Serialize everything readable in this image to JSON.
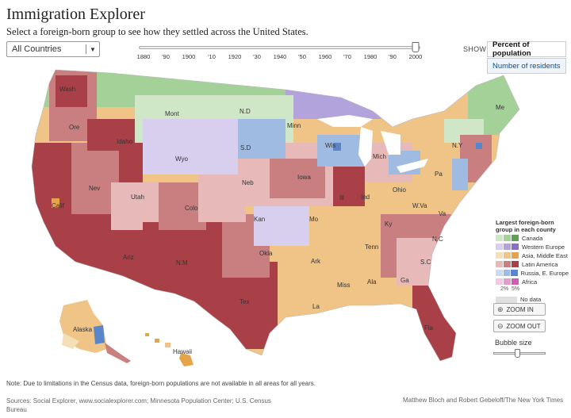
{
  "header": {
    "title": "Immigration Explorer",
    "subtitle": "Select a foreign-born group to see how they settled across the United States."
  },
  "country_select": {
    "value": "All Countries",
    "arrow": "▼"
  },
  "timeline": {
    "ticks": [
      "1880",
      "'90",
      "1900",
      "'10",
      "1920",
      "'30",
      "1940",
      "'50",
      "1960",
      "'70",
      "1980",
      "'90",
      "2000"
    ],
    "selected": "2000"
  },
  "show": {
    "label": "SHOW",
    "options": [
      "Percent of population",
      "Number of residents"
    ],
    "selected": "Percent of population"
  },
  "map": {
    "state_labels": [
      "Wash",
      "Ore",
      "Calif",
      "Nev",
      "Idaho",
      "Mont",
      "Wyo",
      "Utah",
      "Colo",
      "Ariz",
      "N.M",
      "N.D",
      "S.D",
      "Neb",
      "Kan",
      "Okla",
      "Tex",
      "Minn",
      "Iowa",
      "Mo",
      "Ark",
      "La",
      "Wis",
      "Ill",
      "Mich",
      "Ind",
      "Ohio",
      "Ky",
      "Tenn",
      "Miss",
      "Ala",
      "Ga",
      "Fla",
      "S.C",
      "N.C",
      "Va",
      "W.Va",
      "Pa",
      "N.Y",
      "Me",
      "Alaska",
      "Hawaii"
    ],
    "colors": {
      "canada": "#a9d49f",
      "western_europe": "#b6a7d8",
      "asia_middle_east": "#f0c98d",
      "latin_america": "#b5565b",
      "russia_e_europe": "#9bb8e0",
      "africa": "#e49bd0",
      "water": "#ffffff",
      "border": "#ffffff"
    }
  },
  "legend": {
    "title": "Largest foreign-born group in each county",
    "rows": [
      {
        "label": "Canada",
        "shades": [
          "#cfe7c6",
          "#a3d198",
          "#5f9e56"
        ]
      },
      {
        "label": "Western Europe",
        "shades": [
          "#d8cfee",
          "#b3a3dc",
          "#8a6fc4"
        ]
      },
      {
        "label": "Asia, Middle East",
        "shades": [
          "#f5dfb5",
          "#efc486",
          "#e6a44a"
        ]
      },
      {
        "label": "Latin America",
        "shades": [
          "#e8b9b9",
          "#c97f80",
          "#a94048"
        ]
      },
      {
        "label": "Russia, E. Europe",
        "shades": [
          "#cddbf0",
          "#9fbbe2",
          "#5a86c9"
        ]
      },
      {
        "label": "Africa",
        "shades": [
          "#f2c8e6",
          "#e49bd0",
          "#d05cb3"
        ]
      }
    ],
    "pct_labels": "2%  5%",
    "no_data": "No data"
  },
  "zoom": {
    "in": "ZOOM IN",
    "out": "ZOOM OUT"
  },
  "bubble": {
    "label": "Bubble size"
  },
  "footer": {
    "note": "Note: Due to limitations in the Census data, foreign-born  populations are not available in all areas for all years.",
    "sources": "Sources: Social Explorer, www.socialexplorer.com; Minnesota Population Center; U.S. Census Bureau",
    "credit": "Matthew Bloch and Robert Gebeloff/The New York Times"
  }
}
